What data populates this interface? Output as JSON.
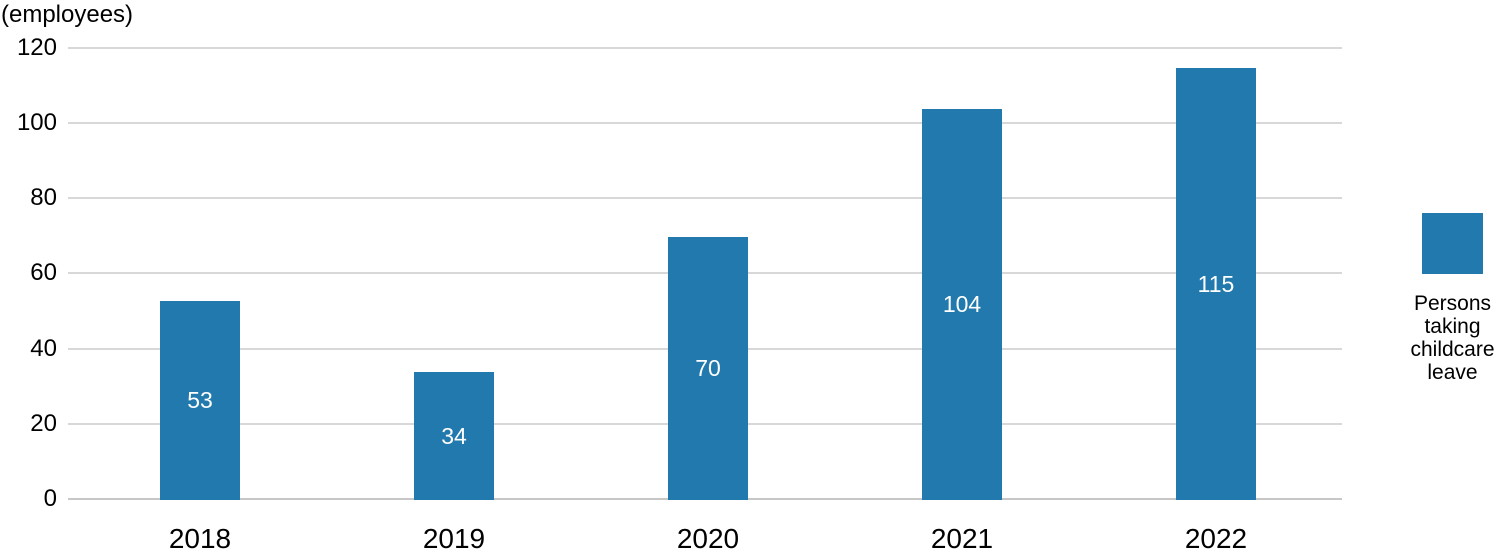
{
  "chart_data": {
    "type": "bar",
    "unit_label": "(employees)",
    "categories": [
      "2018",
      "2019",
      "2020",
      "2021",
      "2022"
    ],
    "series": [
      {
        "name": "Persons taking childcare leave",
        "values": [
          53,
          34,
          70,
          104,
          115
        ]
      }
    ],
    "data_labels": [
      53,
      34,
      70,
      104,
      115
    ],
    "data_label_position": "inside-center",
    "ylim": [
      0,
      120
    ],
    "yticks": [
      0,
      20,
      40,
      60,
      80,
      100,
      120
    ],
    "grid": true,
    "legend_position": "right"
  },
  "legend": {
    "label": "Persons taking childcare leave",
    "label_lines": [
      "Persons",
      "taking",
      "childcare",
      "leave"
    ]
  },
  "colors": {
    "bar": "#2179ad",
    "data_label": "#ffffff",
    "gridline": "#d8d8d8",
    "baseline": "#c7c7c7",
    "text": "#000000",
    "background": "#ffffff"
  }
}
